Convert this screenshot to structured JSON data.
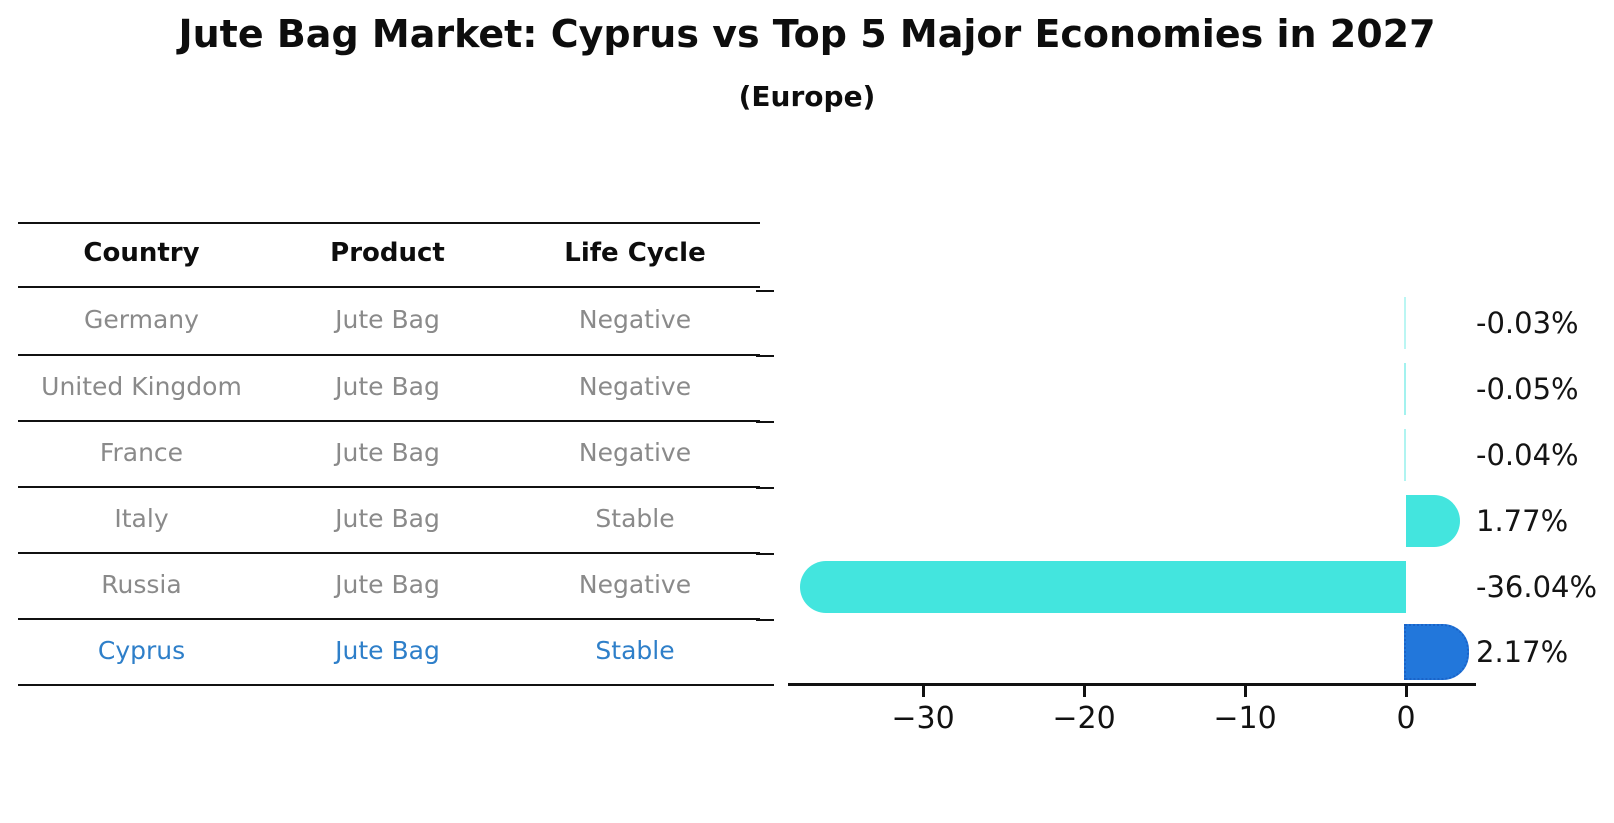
{
  "title": "Jute Bag Market: Cyprus vs Top 5 Major Economies in 2027",
  "subtitle": "(Europe)",
  "table": {
    "headers": [
      "Country",
      "Product",
      "Life Cycle"
    ],
    "rows": [
      {
        "country": "Germany",
        "product": "Jute Bag",
        "life_cycle": "Negative",
        "highlight": false
      },
      {
        "country": "United Kingdom",
        "product": "Jute Bag",
        "life_cycle": "Negative",
        "highlight": false
      },
      {
        "country": "France",
        "product": "Jute Bag",
        "life_cycle": "Negative",
        "highlight": false
      },
      {
        "country": "Italy",
        "product": "Jute Bag",
        "life_cycle": "Stable",
        "highlight": false
      },
      {
        "country": "Russia",
        "product": "Jute Bag",
        "life_cycle": "Negative",
        "highlight": false
      },
      {
        "country": "Cyprus",
        "product": "Jute Bag",
        "life_cycle": "Stable",
        "highlight": true
      }
    ]
  },
  "chart_data": {
    "type": "bar",
    "orientation": "horizontal",
    "categories": [
      "Germany",
      "United Kingdom",
      "France",
      "Italy",
      "Russia",
      "Cyprus"
    ],
    "values": [
      -0.03,
      -0.05,
      -0.04,
      1.77,
      -36.04,
      2.17
    ],
    "bar_labels": [
      "-0.03%",
      "-0.05%",
      "-0.04%",
      "1.77%",
      "-36.04%",
      "2.17%"
    ],
    "x_tick_labels": [
      "−30",
      "−20",
      "−10",
      "0"
    ],
    "x_tick_values": [
      -30,
      -20,
      -10,
      0
    ],
    "xlim": [
      -39,
      4.4
    ],
    "grid": false,
    "legend": "none",
    "highlight_index": 5
  },
  "colors": {
    "bar_default": "#43E5DE",
    "bar_default_rgb": "67,229,222",
    "bar_highlight": "#2277DB",
    "bar_highlight_border": "#1a63c8",
    "table_text": "#8a8a8a",
    "table_highlight_text": "#2e7fc9",
    "axis": "#111111",
    "text": "#0d0d0d"
  }
}
